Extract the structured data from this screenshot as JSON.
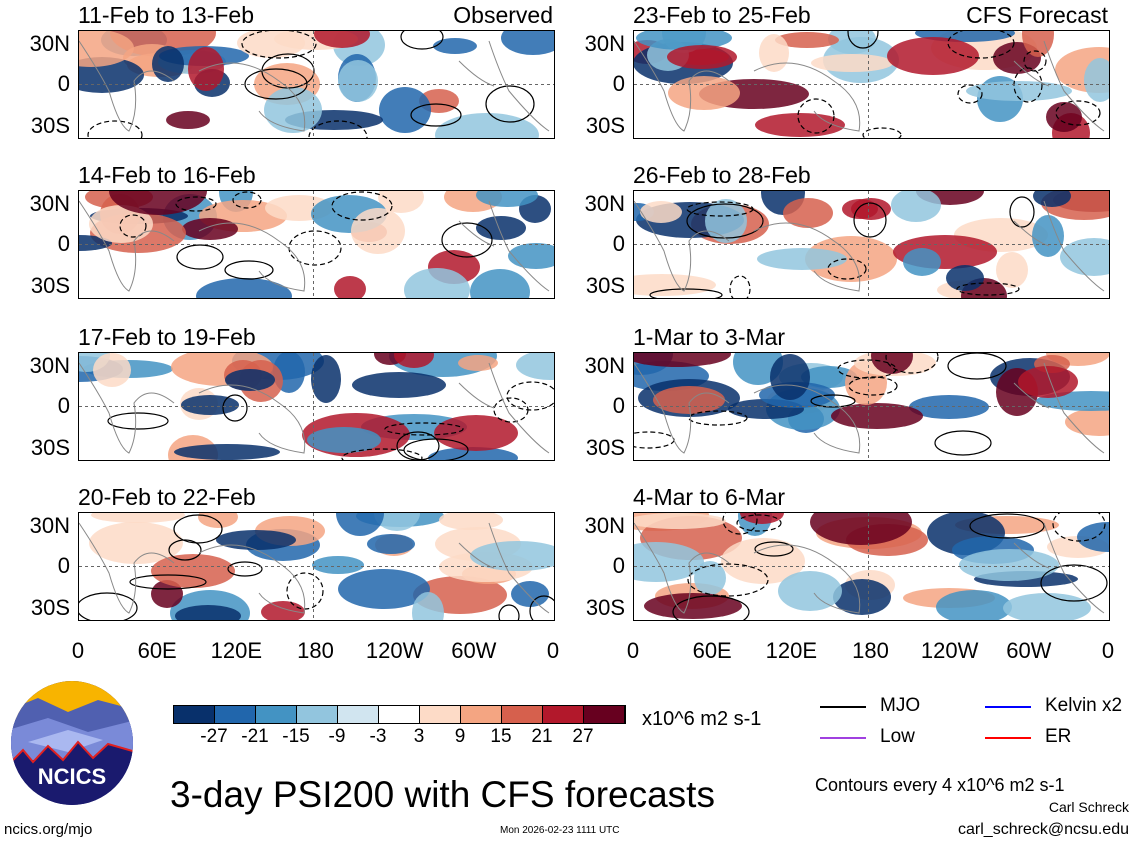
{
  "title": "3-day PSI200 with CFS forecasts",
  "panels_left": [
    {
      "title": "11-Feb to 13-Feb",
      "tag": "Observed"
    },
    {
      "title": "14-Feb to 16-Feb"
    },
    {
      "title": "17-Feb to 19-Feb"
    },
    {
      "title": "20-Feb to 22-Feb"
    }
  ],
  "panels_right": [
    {
      "title": "23-Feb to 25-Feb",
      "tag": "CFS Forecast"
    },
    {
      "title": "26-Feb to 28-Feb"
    },
    {
      "title": "1-Mar to 3-Mar"
    },
    {
      "title": "4-Mar to 6-Mar"
    }
  ],
  "y_ticks": [
    "30N",
    "0",
    "30S"
  ],
  "x_ticks": [
    "0",
    "60E",
    "120E",
    "180",
    "120W",
    "60W",
    "0"
  ],
  "colorbar": {
    "colors": [
      "#08306b",
      "#2166ac",
      "#4393c3",
      "#92c5de",
      "#d1e5f0",
      "#ffffff",
      "#fddbc7",
      "#f4a582",
      "#d6604d",
      "#b2182b",
      "#67001f"
    ],
    "labels": [
      "-27",
      "-21",
      "-15",
      "-9",
      "-3",
      "3",
      "9",
      "15",
      "21",
      "27"
    ],
    "units": "x10^6 m2 s-1"
  },
  "legend": [
    {
      "label": "MJO",
      "color": "#000000"
    },
    {
      "label": "Kelvin x2",
      "color": "#0000ff"
    },
    {
      "label": "Low",
      "color": "#a040e0"
    },
    {
      "label": "ER",
      "color": "#ff0000"
    }
  ],
  "contour_note": "Contours every 4 x10^6 m2 s-1",
  "author": "Carl Schreck",
  "email": "carl_schreck@ncsu.edu",
  "url": "ncics.org/mjo",
  "timestamp": "Mon 2026-02-23 1111 UTC",
  "logo_text": "NCICS"
}
